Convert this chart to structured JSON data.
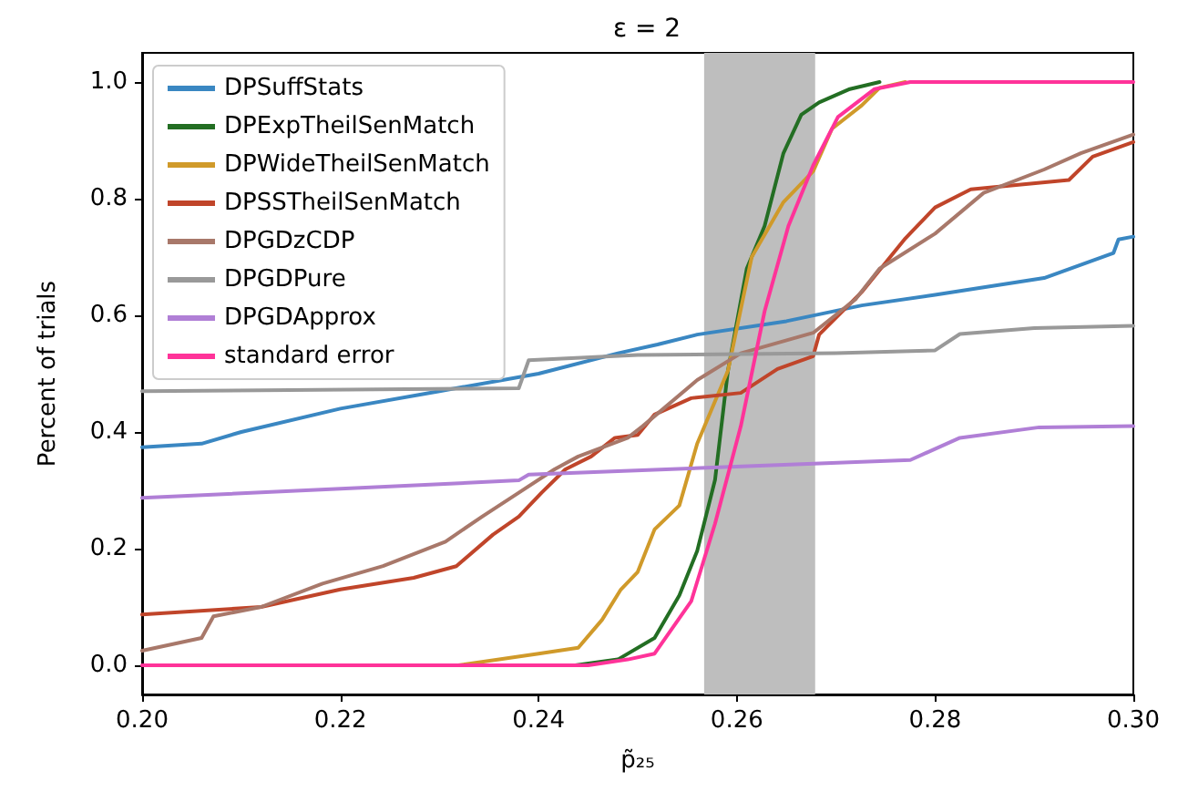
{
  "chart_data": {
    "type": "line",
    "title": "ε = 2",
    "xlabel": "p̃₂₅",
    "ylabel": "Percent of trials",
    "xlim": [
      0.2,
      0.3
    ],
    "ylim": [
      -0.05,
      1.05
    ],
    "xticks": [
      {
        "value": 0.2,
        "label": "0.20"
      },
      {
        "value": 0.22,
        "label": "0.22"
      },
      {
        "value": 0.24,
        "label": "0.24"
      },
      {
        "value": 0.26,
        "label": "0.26"
      },
      {
        "value": 0.28,
        "label": "0.28"
      },
      {
        "value": 0.3,
        "label": "0.30"
      }
    ],
    "yticks": [
      {
        "value": 0,
        "label": "0.0"
      },
      {
        "value": 0.2,
        "label": "0.2"
      },
      {
        "value": 0.4,
        "label": "0.4"
      },
      {
        "value": 0.6,
        "label": "0.6"
      },
      {
        "value": 0.8,
        "label": "0.8"
      },
      {
        "value": 1,
        "label": "1.0"
      }
    ],
    "grid": false,
    "legend": "top left",
    "marker": "none",
    "line_style": "solid",
    "bands": [
      {
        "axis": "x",
        "from": 0.2567,
        "to": 0.2679,
        "color": "#bebebe"
      }
    ],
    "series": [
      {
        "name": "DPSuffStats",
        "color": "#3a87c2",
        "x": [
          0.2,
          0.206,
          0.21,
          0.22,
          0.23,
          0.24,
          0.248,
          0.252,
          0.256,
          0.265,
          0.2726,
          0.28,
          0.291,
          0.298,
          0.2985,
          0.3
        ],
        "values": [
          0.374,
          0.38,
          0.4,
          0.44,
          0.47,
          0.5,
          0.535,
          0.55,
          0.567,
          0.59,
          0.617,
          0.635,
          0.664,
          0.707,
          0.73,
          0.735
        ]
      },
      {
        "name": "DPExpTheilSenMatch",
        "color": "#236e23",
        "x": [
          0.2437,
          0.248,
          0.2517,
          0.2542,
          0.256,
          0.2578,
          0.2591,
          0.261,
          0.2628,
          0.2647,
          0.2665,
          0.2683,
          0.2714,
          0.2744
        ],
        "values": [
          0,
          0.01,
          0.047,
          0.12,
          0.196,
          0.318,
          0.505,
          0.68,
          0.753,
          0.878,
          0.944,
          0.965,
          0.988,
          1.0
        ]
      },
      {
        "name": "DPWideTheilSenMatch",
        "color": "#d09a2a",
        "x": [
          0.2319,
          0.24,
          0.244,
          0.2453,
          0.2464,
          0.2483,
          0.25,
          0.2517,
          0.2542,
          0.256,
          0.2591,
          0.2615,
          0.2647,
          0.2677,
          0.2696,
          0.2726,
          0.2744,
          0.277
        ],
        "values": [
          0,
          0.02,
          0.03,
          0.056,
          0.078,
          0.13,
          0.16,
          0.233,
          0.274,
          0.38,
          0.505,
          0.7,
          0.794,
          0.847,
          0.92,
          0.96,
          0.99,
          1.0
        ]
      },
      {
        "name": "DPSSTheilSenMatch",
        "color": "#c0452a",
        "x": [
          0.2,
          0.212,
          0.22,
          0.2274,
          0.2317,
          0.2354,
          0.238,
          0.2403,
          0.2427,
          0.2453,
          0.2477,
          0.25,
          0.2517,
          0.2554,
          0.2604,
          0.2641,
          0.2677,
          0.2683,
          0.2726,
          0.277,
          0.28,
          0.2836,
          0.2935,
          0.2959,
          0.3
        ],
        "values": [
          0.087,
          0.1,
          0.13,
          0.15,
          0.17,
          0.224,
          0.255,
          0.296,
          0.336,
          0.358,
          0.39,
          0.395,
          0.43,
          0.458,
          0.467,
          0.508,
          0.53,
          0.567,
          0.64,
          0.732,
          0.785,
          0.816,
          0.832,
          0.872,
          0.897
        ]
      },
      {
        "name": "DPGDzCDP",
        "color": "#a8786a",
        "x": [
          0.2,
          0.206,
          0.2072,
          0.212,
          0.2182,
          0.2243,
          0.2306,
          0.2343,
          0.238,
          0.2416,
          0.244,
          0.249,
          0.2505,
          0.256,
          0.2604,
          0.2677,
          0.272,
          0.2744,
          0.28,
          0.2849,
          0.291,
          0.2947,
          0.3
        ],
        "values": [
          0.025,
          0.047,
          0.084,
          0.1,
          0.14,
          0.17,
          0.212,
          0.255,
          0.296,
          0.336,
          0.358,
          0.39,
          0.41,
          0.489,
          0.535,
          0.57,
          0.628,
          0.68,
          0.74,
          0.81,
          0.85,
          0.878,
          0.91
        ]
      },
      {
        "name": "DPGDPure",
        "color": "#999999",
        "x": [
          0.2,
          0.238,
          0.239,
          0.25,
          0.27,
          0.28,
          0.2825,
          0.29,
          0.3
        ],
        "values": [
          0.47,
          0.475,
          0.523,
          0.532,
          0.535,
          0.54,
          0.568,
          0.578,
          0.582
        ]
      },
      {
        "name": "DPGDApprox",
        "color": "#b07fd6",
        "x": [
          0.2,
          0.238,
          0.239,
          0.248,
          0.2775,
          0.2825,
          0.2905,
          0.3
        ],
        "values": [
          0.287,
          0.317,
          0.327,
          0.333,
          0.352,
          0.39,
          0.408,
          0.41
        ]
      },
      {
        "name": "standard error",
        "color": "#ff3399",
        "x": [
          0.2,
          0.245,
          0.249,
          0.2517,
          0.2554,
          0.2578,
          0.2604,
          0.2628,
          0.2652,
          0.2677,
          0.2702,
          0.2739,
          0.2775,
          0.3
        ],
        "values": [
          0,
          0,
          0.01,
          0.02,
          0.11,
          0.243,
          0.41,
          0.607,
          0.753,
          0.857,
          0.94,
          0.988,
          1.0,
          1.0
        ]
      }
    ]
  }
}
